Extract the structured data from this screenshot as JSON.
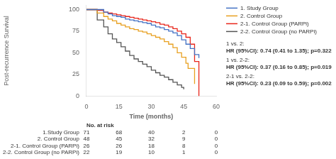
{
  "chart_data": {
    "type": "step",
    "x_label": "Time (months)",
    "y_label": "Post-recurrence Survival",
    "xlim": [
      0,
      60
    ],
    "xticks": [
      0,
      15,
      30,
      45,
      60
    ],
    "ylim": [
      0,
      105
    ],
    "yticks": [
      0,
      25,
      50,
      75,
      100
    ],
    "grid": false,
    "legend": "right",
    "series": [
      {
        "name": "1. Study Group",
        "color": "#4472C4",
        "x": [
          0,
          5,
          8,
          10,
          12,
          14,
          16,
          18,
          20,
          22,
          24,
          26,
          28,
          30,
          32,
          34,
          36,
          38,
          40,
          42,
          44,
          46,
          48,
          50,
          52
        ],
        "values": [
          100,
          100,
          97,
          95,
          93,
          92,
          91,
          89,
          88,
          87,
          86,
          85,
          84,
          82,
          80,
          79,
          77,
          75,
          73,
          70,
          65,
          60,
          55,
          48,
          44
        ]
      },
      {
        "name": "2. Control Group",
        "color": "#E8A020",
        "x": [
          0,
          5,
          8,
          10,
          12,
          14,
          16,
          18,
          20,
          22,
          24,
          26,
          28,
          30,
          32,
          34,
          36,
          38,
          40,
          42,
          44,
          46,
          47,
          50
        ],
        "values": [
          100,
          96,
          92,
          89,
          87,
          84,
          82,
          80,
          78,
          77,
          75,
          74,
          72,
          70,
          68,
          66,
          63,
          60,
          56,
          50,
          45,
          38,
          32,
          14
        ]
      },
      {
        "name": "2-1. Control Group (PARPi)",
        "color": "#E8251A",
        "x": [
          0,
          5,
          8,
          10,
          12,
          14,
          16,
          18,
          20,
          22,
          24,
          26,
          28,
          30,
          32,
          34,
          36,
          38,
          40,
          42,
          44,
          46,
          48,
          50,
          52
        ],
        "values": [
          100,
          99,
          97,
          96,
          95,
          94,
          93,
          92,
          91,
          90,
          89,
          88,
          87,
          86,
          85,
          83,
          82,
          80,
          78,
          75,
          72,
          68,
          60,
          40,
          0
        ]
      },
      {
        "name": "2-2. Control Group (no PARPi)",
        "color": "#555555",
        "x": [
          0,
          5,
          8,
          10,
          12,
          14,
          16,
          18,
          20,
          22,
          24,
          26,
          28,
          30,
          32,
          34,
          36,
          38,
          40,
          42,
          44,
          45
        ],
        "values": [
          100,
          88,
          80,
          72,
          66,
          62,
          57,
          52,
          47,
          43,
          40,
          37,
          34,
          30,
          27,
          24,
          22,
          19,
          16,
          13,
          10,
          8
        ]
      }
    ],
    "annotations": [
      "1 vs. 2:",
      "HR (95%CI): 0.74 (0.41 to 1.35); p=0.322",
      "1 vs. 2-2:",
      "HR (95%CI): 0.37 (0.16 to 0.85); p=0.019",
      "2-1 vs. 2-2:",
      "HR (95%CI): 0.23 (0.09 to 0.59); p=0.002"
    ],
    "at_risk": {
      "title": "No. at risk",
      "labels": [
        "1.Study Group",
        "2. Control Group",
        "2-1. Control Group (PARPi)",
        "2-2. Control Group (no PARPi)"
      ],
      "x": [
        0,
        15,
        30,
        45,
        60
      ],
      "values": [
        [
          71,
          68,
          40,
          2,
          0
        ],
        [
          48,
          45,
          32,
          9,
          0
        ],
        [
          26,
          26,
          18,
          8,
          0
        ],
        [
          22,
          19,
          10,
          1,
          0
        ]
      ]
    }
  }
}
